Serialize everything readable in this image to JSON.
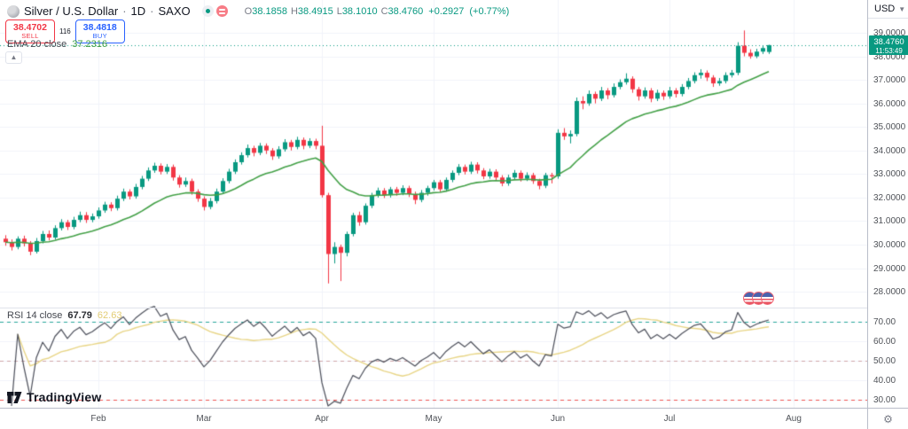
{
  "header": {
    "symbol": "Silver / U.S. Dollar",
    "separator": "·",
    "interval": "1D",
    "exchange": "SAXO",
    "ohlc": {
      "o_label": "O",
      "o": "38.1858",
      "h_label": "H",
      "h": "38.4915",
      "l_label": "L",
      "l": "38.1010",
      "c_label": "C",
      "c": "38.4760",
      "change": "+0.2927",
      "change_pct": "(+0.77%)"
    },
    "sell": {
      "price": "38.4702",
      "label": "SELL"
    },
    "spread": "116",
    "buy": {
      "price": "38.4818",
      "label": "BUY"
    }
  },
  "legends": {
    "ema": {
      "name": "EMA 20 close",
      "value": "37.2316"
    },
    "rsi": {
      "name": "RSI 14 close",
      "value": "67.79",
      "ma_value": "62.63"
    }
  },
  "price_axis": {
    "currency": "USD",
    "ticks": [
      "39.0000",
      "38.0000",
      "37.0000",
      "36.0000",
      "35.0000",
      "34.0000",
      "33.0000",
      "32.0000",
      "31.0000",
      "30.0000",
      "29.0000",
      "28.0000"
    ],
    "last": {
      "price": "38.4760",
      "countdown": "11:53:49"
    }
  },
  "rsi_axis": {
    "ticks": [
      "70.00",
      "60.00",
      "50.00",
      "40.00",
      "30.00"
    ]
  },
  "branding": {
    "logo_text": "TradingView"
  },
  "colors": {
    "up": "#089981",
    "down": "#f23645",
    "ema_line": "#43a047",
    "rsi_line": "#50535e",
    "rsi_ma_line": "#e8d586",
    "rsi_upper_band": "#26a69a",
    "rsi_middle_band": "#cfa6aa",
    "rsi_lower_band": "#ef5350",
    "grid": "#f0f3fa",
    "axis_border": "#b9bdc9",
    "last_price_line": "#089981",
    "badge_bg": "#089981",
    "sell": "#f23645",
    "buy": "#2962ff"
  },
  "chart_data": {
    "type": "candlestick",
    "title": "Silver / U.S. Dollar · 1D · SAXO",
    "ylabel": "USD",
    "price_ticks": [
      39,
      38,
      37,
      36,
      35,
      34,
      33,
      32,
      31,
      30,
      29,
      28
    ],
    "last_price": 38.476,
    "overlays": [
      "EMA 20 close",
      "RSI 14 close"
    ],
    "rsi_levels": {
      "upper": 70,
      "middle": 50,
      "lower": 30
    },
    "rsi_ticks": [
      70,
      60,
      50,
      40,
      30
    ],
    "months": [
      {
        "label": "Feb",
        "index": 15
      },
      {
        "label": "Mar",
        "index": 32
      },
      {
        "label": "Apr",
        "index": 51
      },
      {
        "label": "May",
        "index": 69
      },
      {
        "label": "Jun",
        "index": 89
      },
      {
        "label": "Jul",
        "index": 107
      },
      {
        "label": "Aug",
        "index": 127
      }
    ],
    "candles": [
      [
        30.25,
        30.4,
        29.95,
        30.1
      ],
      [
        30.1,
        30.22,
        29.75,
        29.9
      ],
      [
        29.9,
        30.35,
        29.8,
        30.25
      ],
      [
        30.25,
        30.38,
        29.92,
        30.05
      ],
      [
        30.05,
        30.15,
        29.55,
        29.7
      ],
      [
        29.7,
        30.28,
        29.62,
        30.15
      ],
      [
        30.15,
        30.58,
        30.05,
        30.45
      ],
      [
        30.45,
        30.6,
        30.18,
        30.3
      ],
      [
        30.3,
        30.82,
        30.22,
        30.7
      ],
      [
        30.7,
        31.08,
        30.6,
        30.95
      ],
      [
        30.95,
        31.05,
        30.62,
        30.75
      ],
      [
        30.75,
        31.18,
        30.65,
        31.05
      ],
      [
        31.05,
        31.4,
        30.95,
        31.25
      ],
      [
        31.25,
        31.38,
        30.92,
        31.05
      ],
      [
        31.05,
        31.32,
        30.95,
        31.2
      ],
      [
        31.2,
        31.58,
        31.1,
        31.45
      ],
      [
        31.45,
        31.82,
        31.35,
        31.7
      ],
      [
        31.7,
        31.8,
        31.42,
        31.55
      ],
      [
        31.55,
        32.08,
        31.45,
        31.95
      ],
      [
        31.95,
        32.38,
        31.85,
        32.25
      ],
      [
        32.25,
        32.35,
        31.92,
        32.05
      ],
      [
        32.05,
        32.58,
        31.95,
        32.45
      ],
      [
        32.45,
        32.92,
        32.35,
        32.8
      ],
      [
        32.8,
        33.28,
        32.7,
        33.15
      ],
      [
        33.15,
        33.48,
        33.05,
        33.35
      ],
      [
        33.35,
        33.45,
        32.98,
        33.1
      ],
      [
        33.1,
        33.42,
        33.0,
        33.3
      ],
      [
        33.3,
        33.4,
        32.72,
        32.85
      ],
      [
        32.85,
        32.95,
        32.42,
        32.55
      ],
      [
        32.55,
        32.85,
        32.45,
        32.7
      ],
      [
        32.7,
        32.8,
        32.12,
        32.25
      ],
      [
        32.25,
        32.35,
        31.82,
        31.95
      ],
      [
        31.95,
        32.05,
        31.45,
        31.6
      ],
      [
        31.6,
        31.98,
        31.5,
        31.85
      ],
      [
        31.85,
        32.38,
        31.75,
        32.25
      ],
      [
        32.25,
        32.82,
        32.15,
        32.7
      ],
      [
        32.7,
        33.22,
        32.6,
        33.1
      ],
      [
        33.1,
        33.62,
        33.0,
        33.5
      ],
      [
        33.5,
        33.92,
        33.4,
        33.8
      ],
      [
        33.8,
        34.25,
        33.7,
        34.1
      ],
      [
        34.1,
        34.2,
        33.75,
        33.9
      ],
      [
        33.9,
        34.32,
        33.8,
        34.2
      ],
      [
        34.2,
        34.3,
        33.85,
        34.0
      ],
      [
        34.0,
        34.1,
        33.6,
        33.75
      ],
      [
        33.75,
        34.18,
        33.65,
        34.05
      ],
      [
        34.05,
        34.48,
        33.95,
        34.35
      ],
      [
        34.35,
        34.45,
        34.0,
        34.15
      ],
      [
        34.15,
        34.58,
        34.05,
        34.45
      ],
      [
        34.45,
        34.55,
        34.05,
        34.2
      ],
      [
        34.2,
        34.52,
        34.1,
        34.4
      ],
      [
        34.4,
        34.5,
        34.05,
        34.2
      ],
      [
        34.2,
        35.05,
        32.0,
        32.1
      ],
      [
        32.1,
        32.2,
        28.35,
        29.6
      ],
      [
        29.6,
        30.1,
        29.2,
        29.9
      ],
      [
        29.9,
        30.0,
        28.45,
        29.65
      ],
      [
        29.65,
        30.55,
        29.5,
        30.45
      ],
      [
        30.45,
        31.35,
        30.35,
        31.25
      ],
      [
        31.25,
        31.4,
        30.8,
        30.95
      ],
      [
        30.95,
        31.75,
        30.85,
        31.65
      ],
      [
        31.65,
        32.2,
        31.55,
        32.1
      ],
      [
        32.1,
        32.42,
        32.0,
        32.3
      ],
      [
        32.3,
        32.4,
        31.98,
        32.1
      ],
      [
        32.1,
        32.45,
        32.0,
        32.35
      ],
      [
        32.35,
        32.45,
        32.08,
        32.2
      ],
      [
        32.2,
        32.52,
        32.1,
        32.4
      ],
      [
        32.4,
        32.5,
        32.02,
        32.15
      ],
      [
        32.15,
        32.25,
        31.72,
        31.9
      ],
      [
        31.9,
        32.32,
        31.8,
        32.2
      ],
      [
        32.2,
        32.5,
        32.08,
        32.4
      ],
      [
        32.4,
        32.75,
        32.3,
        32.65
      ],
      [
        32.65,
        32.75,
        32.25,
        32.35
      ],
      [
        32.35,
        32.85,
        32.25,
        32.75
      ],
      [
        32.75,
        33.15,
        32.65,
        33.05
      ],
      [
        33.05,
        33.42,
        32.95,
        33.3
      ],
      [
        33.3,
        33.4,
        32.98,
        33.1
      ],
      [
        33.1,
        33.52,
        33.0,
        33.4
      ],
      [
        33.4,
        33.5,
        33.02,
        33.15
      ],
      [
        33.15,
        33.25,
        32.78,
        32.9
      ],
      [
        32.9,
        33.22,
        32.8,
        33.1
      ],
      [
        33.1,
        33.2,
        32.72,
        32.85
      ],
      [
        32.85,
        32.95,
        32.48,
        32.6
      ],
      [
        32.6,
        32.97,
        32.5,
        32.85
      ],
      [
        32.85,
        33.17,
        32.75,
        33.05
      ],
      [
        33.05,
        33.15,
        32.68,
        32.8
      ],
      [
        32.8,
        33.07,
        32.7,
        32.95
      ],
      [
        32.95,
        33.05,
        32.58,
        32.7
      ],
      [
        32.7,
        32.8,
        32.35,
        32.5
      ],
      [
        32.5,
        33.05,
        32.4,
        32.95
      ],
      [
        32.95,
        33.05,
        32.6,
        32.9
      ],
      [
        32.9,
        34.9,
        32.8,
        34.75
      ],
      [
        34.75,
        34.95,
        34.45,
        34.6
      ],
      [
        34.6,
        34.85,
        34.3,
        34.7
      ],
      [
        34.7,
        36.25,
        34.6,
        36.1
      ],
      [
        36.1,
        36.3,
        35.75,
        36.0
      ],
      [
        36.0,
        36.55,
        35.9,
        36.4
      ],
      [
        36.4,
        36.5,
        36.0,
        36.2
      ],
      [
        36.2,
        36.7,
        36.1,
        36.55
      ],
      [
        36.55,
        36.65,
        36.18,
        36.35
      ],
      [
        36.35,
        36.85,
        36.25,
        36.7
      ],
      [
        36.7,
        37.02,
        36.6,
        36.9
      ],
      [
        36.9,
        37.28,
        36.8,
        37.05
      ],
      [
        37.05,
        37.15,
        36.45,
        36.6
      ],
      [
        36.6,
        36.7,
        36.12,
        36.3
      ],
      [
        36.3,
        36.68,
        36.2,
        36.55
      ],
      [
        36.55,
        36.65,
        36.05,
        36.2
      ],
      [
        36.2,
        36.58,
        36.1,
        36.45
      ],
      [
        36.45,
        36.55,
        36.15,
        36.3
      ],
      [
        36.3,
        36.7,
        36.2,
        36.55
      ],
      [
        36.55,
        36.65,
        36.25,
        36.4
      ],
      [
        36.4,
        36.82,
        36.3,
        36.7
      ],
      [
        36.7,
        37.08,
        36.6,
        36.95
      ],
      [
        36.95,
        37.32,
        36.85,
        37.2
      ],
      [
        37.2,
        37.45,
        37.05,
        37.3
      ],
      [
        37.3,
        37.4,
        36.95,
        37.1
      ],
      [
        37.1,
        37.2,
        36.7,
        36.85
      ],
      [
        36.85,
        37.08,
        36.75,
        36.95
      ],
      [
        36.95,
        37.32,
        36.85,
        37.2
      ],
      [
        37.2,
        37.42,
        37.1,
        37.3
      ],
      [
        37.3,
        38.6,
        37.2,
        38.45
      ],
      [
        38.45,
        39.1,
        38.0,
        38.15
      ],
      [
        38.15,
        38.3,
        37.9,
        38.0
      ],
      [
        38.0,
        38.32,
        37.92,
        38.2
      ],
      [
        38.2,
        38.45,
        38.1,
        38.35
      ],
      [
        38.1858,
        38.4915,
        38.101,
        38.476
      ]
    ]
  }
}
